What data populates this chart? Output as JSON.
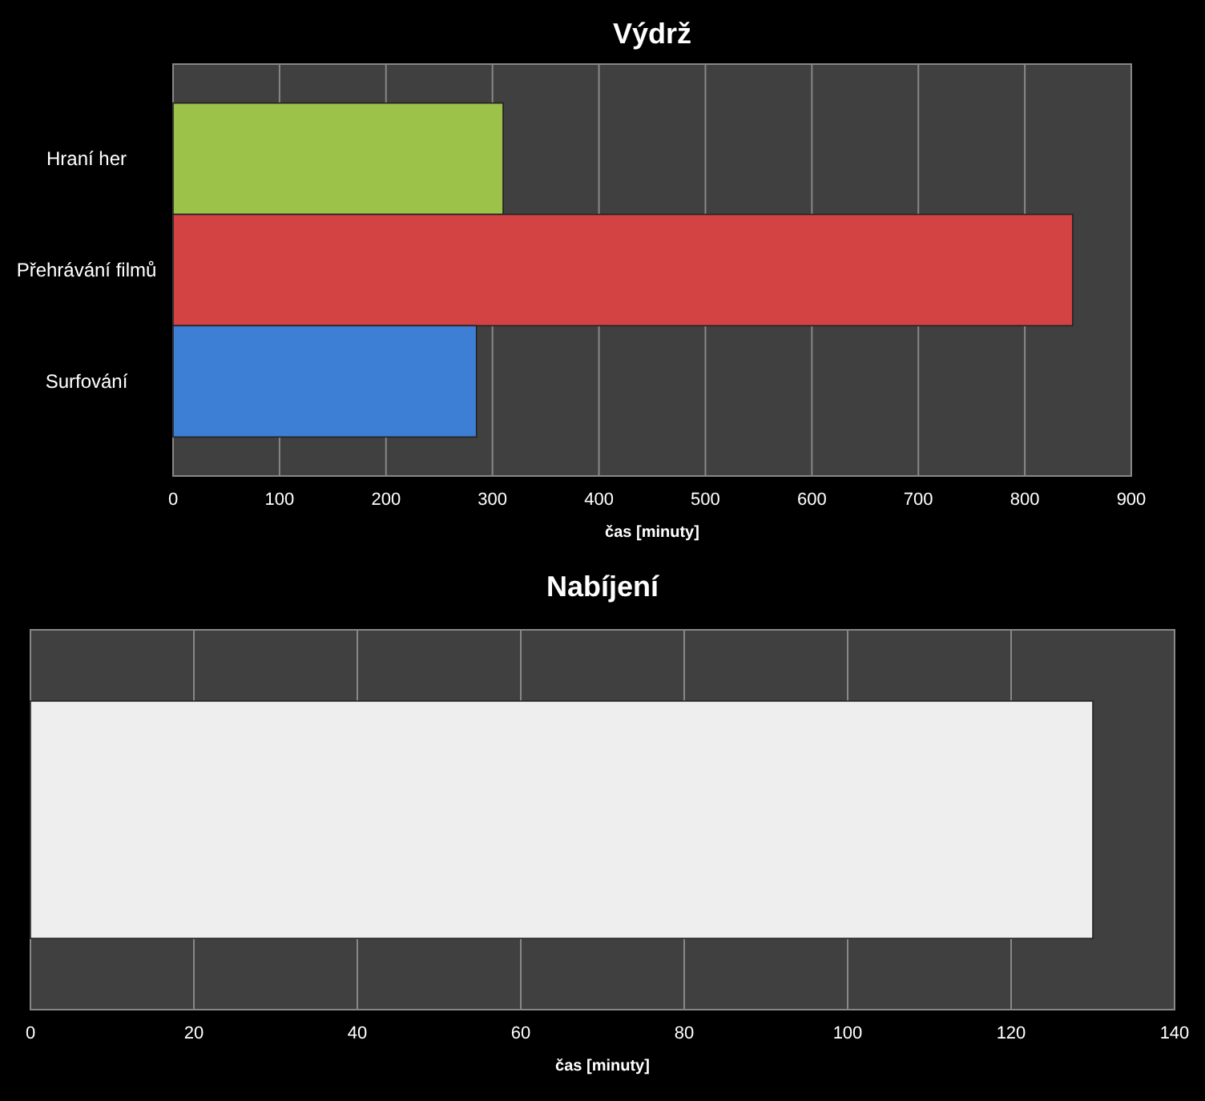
{
  "chart_data": [
    {
      "type": "bar",
      "orientation": "horizontal",
      "title": "Výdrž",
      "xlabel": "čas [minuty]",
      "categories": [
        "Hraní her",
        "Přehrávání filmů",
        "Surfování"
      ],
      "values": [
        310,
        845,
        285
      ],
      "colors": [
        "#9cc24a",
        "#d44343",
        "#3d7fd4"
      ],
      "xlim": [
        0,
        900
      ],
      "xticks": [
        0,
        100,
        200,
        300,
        400,
        500,
        600,
        700,
        800,
        900
      ],
      "grid": "x"
    },
    {
      "type": "bar",
      "orientation": "horizontal",
      "title": "Nabíjení",
      "xlabel": "čas [minuty]",
      "categories": [
        null
      ],
      "values": [
        130
      ],
      "colors": [
        "#eeeeee"
      ],
      "xlim": [
        0,
        140
      ],
      "xticks": [
        0,
        20,
        40,
        60,
        80,
        100,
        120,
        140
      ],
      "grid": "x"
    }
  ]
}
